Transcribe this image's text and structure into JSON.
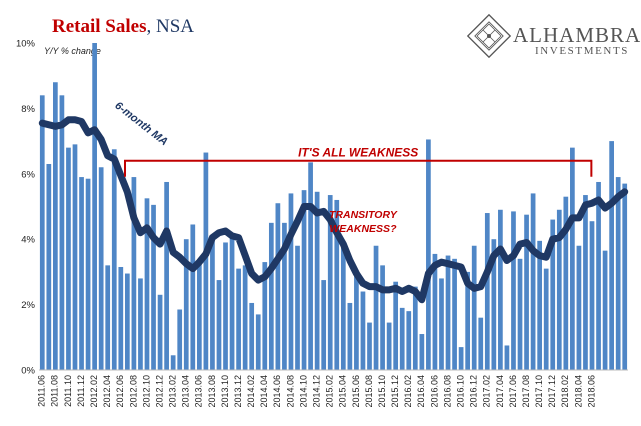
{
  "header": {
    "title_main": "Retail Sales",
    "title_suffix": ", NSA",
    "logo_name": "ALHAMBRA",
    "logo_sub": "INVESTMENTS"
  },
  "colors": {
    "bar": "#4f86c6",
    "ma_line": "#1f3864",
    "annotation": "#c00000",
    "title_red": "#c00000",
    "title_blue": "#1f3864"
  },
  "chart_data": {
    "type": "bar",
    "title": "Retail Sales, NSA",
    "ylabel": "Y/Y % change",
    "ylim": [
      0,
      10
    ],
    "yticks": [
      "0%",
      "2%",
      "4%",
      "6%",
      "8%",
      "10%"
    ],
    "grid": false,
    "x_start": "2011-06",
    "x_tick_labels": [
      "2011.06",
      "2011.08",
      "2011.10",
      "2011.12",
      "2012.02",
      "2012.04",
      "2012.06",
      "2012.08",
      "2012.10",
      "2012.12",
      "2013.02",
      "2013.04",
      "2013.06",
      "2013.08",
      "2013.10",
      "2013.12",
      "2014.02",
      "2014.04",
      "2014.06",
      "2014.08",
      "2014.10",
      "2014.12",
      "2015.02",
      "2015.04",
      "2015.06",
      "2015.08",
      "2015.10",
      "2015.12",
      "2016.02",
      "2016.04",
      "2016.06",
      "2016.08",
      "2016.10",
      "2016.12",
      "2017.02",
      "2017.04",
      "2017.06",
      "2017.08",
      "2017.10",
      "2017.12",
      "2018.02",
      "2018.04",
      "2018.06"
    ],
    "series": [
      {
        "type": "bar",
        "values": [
          8.4,
          6.3,
          8.8,
          8.4,
          6.8,
          6.9,
          5.9,
          5.85,
          10.0,
          6.2,
          3.2,
          6.75,
          3.15,
          2.95,
          5.9,
          2.8,
          5.25,
          5.05,
          2.3,
          5.75,
          0.45,
          1.85,
          4.0,
          4.45,
          3.25,
          6.65,
          4.1,
          2.75,
          3.9,
          4.05,
          3.1,
          3.2,
          2.05,
          1.7,
          3.3,
          4.5,
          5.1,
          4.5,
          5.4,
          3.8,
          5.5,
          6.35,
          5.45,
          2.75,
          5.35,
          5.2,
          3.8,
          2.05,
          3.0,
          2.4,
          1.45,
          3.8,
          3.2,
          1.45,
          2.7,
          1.9,
          1.8,
          2.55,
          1.1,
          7.05,
          3.55,
          2.8,
          3.5,
          3.4,
          0.7,
          3.0,
          3.8,
          1.6,
          4.8,
          4.0,
          4.9,
          0.75,
          4.85,
          3.4,
          4.75,
          5.4,
          3.95,
          3.1,
          4.6,
          4.9,
          5.3,
          6.8,
          3.8,
          5.35,
          4.55,
          5.75,
          3.65,
          7.0,
          5.9,
          5.7
        ]
      },
      {
        "name": "6-month MA",
        "type": "line",
        "values": [
          7.55,
          7.5,
          7.45,
          7.5,
          7.65,
          7.65,
          7.6,
          7.25,
          7.35,
          7.05,
          6.55,
          6.45,
          5.95,
          5.45,
          4.65,
          4.2,
          4.35,
          4.05,
          3.85,
          4.25,
          3.6,
          3.45,
          3.25,
          3.1,
          3.3,
          3.55,
          4.05,
          4.2,
          4.25,
          4.1,
          4.05,
          3.5,
          2.95,
          2.75,
          2.85,
          3.1,
          3.4,
          3.7,
          4.15,
          4.55,
          5.0,
          5.0,
          4.8,
          4.85,
          4.6,
          4.2,
          3.85,
          3.35,
          2.95,
          2.65,
          2.55,
          2.55,
          2.45,
          2.45,
          2.5,
          2.4,
          2.5,
          2.4,
          2.15,
          2.95,
          3.2,
          3.3,
          3.25,
          3.2,
          3.15,
          2.65,
          2.5,
          2.55,
          3.0,
          3.5,
          3.7,
          3.35,
          3.5,
          3.85,
          3.9,
          3.65,
          3.5,
          3.45,
          4.0,
          4.05,
          4.3,
          4.65,
          4.65,
          5.05,
          5.1,
          5.2,
          4.95,
          5.1,
          5.3,
          5.45
        ]
      }
    ],
    "annotations": [
      {
        "text": "6-month MA",
        "target": "ma_line"
      },
      {
        "text": "IT'S ALL WEAKNESS",
        "from": "2012-07",
        "to": "2018-06",
        "level": 6.4
      },
      {
        "text": "TRANSITORY\nWEAKNESS?",
        "near": "2015-05"
      }
    ]
  }
}
